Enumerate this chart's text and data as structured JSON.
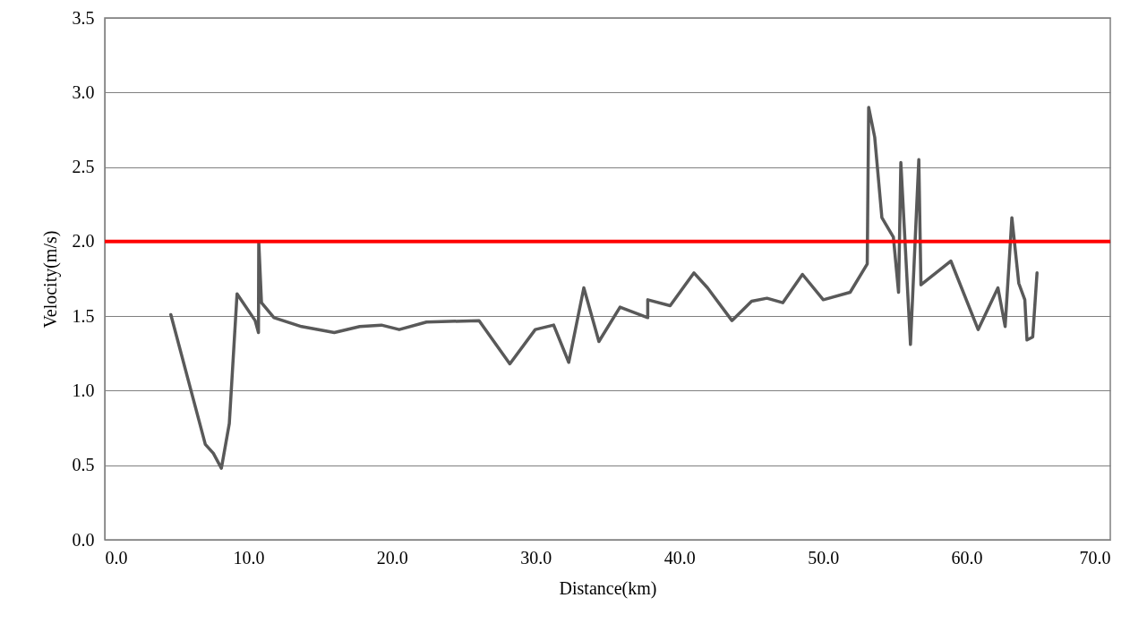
{
  "chart_data": {
    "type": "line",
    "xlabel": "Distance(km)",
    "ylabel": "Velocity(m/s)",
    "xlim": [
      0,
      70
    ],
    "ylim": [
      0,
      3.5
    ],
    "xticks": [
      {
        "value": 0,
        "label": "0.0"
      },
      {
        "value": 10,
        "label": "10.0"
      },
      {
        "value": 20,
        "label": "20.0"
      },
      {
        "value": 30,
        "label": "30.0"
      },
      {
        "value": 40,
        "label": "40.0"
      },
      {
        "value": 50,
        "label": "50.0"
      },
      {
        "value": 60,
        "label": "60.0"
      },
      {
        "value": 70,
        "label": "70.0"
      }
    ],
    "yticks": [
      {
        "value": 0,
        "label": "0.0"
      },
      {
        "value": 0.5,
        "label": "0.5"
      },
      {
        "value": 1,
        "label": "1.0"
      },
      {
        "value": 1.5,
        "label": "1.5"
      },
      {
        "value": 2,
        "label": "2.0"
      },
      {
        "value": 2.5,
        "label": "2.5"
      },
      {
        "value": 3,
        "label": "3.0"
      },
      {
        "value": 3.5,
        "label": "3.5"
      }
    ],
    "grid": "y",
    "marker": "none",
    "line_style": "solid",
    "series": [
      {
        "color": "#595959",
        "x": [
          4.6,
          7.0,
          7.56,
          8.12,
          8.67,
          9.21,
          10.47,
          10.7,
          10.72,
          10.91,
          11.78,
          13.7,
          15.98,
          17.75,
          19.26,
          20.5,
          22.4,
          26.06,
          28.2,
          29.97,
          31.25,
          32.3,
          33.35,
          34.4,
          35.87,
          37.8,
          37.8,
          39.36,
          41.02,
          41.96,
          43.66,
          45.03,
          46.1,
          47.2,
          48.57,
          50.02,
          51.89,
          53.08,
          53.18,
          53.6,
          54.1,
          54.9,
          55.26,
          55.42,
          56.09,
          56.67,
          56.82,
          58.9,
          60.8,
          62.18,
          62.68,
          63.15,
          63.63,
          64.05,
          64.2,
          64.6,
          64.9
        ],
        "values": [
          1.51,
          0.64,
          0.58,
          0.48,
          0.78,
          1.65,
          1.47,
          1.39,
          2.0,
          1.59,
          1.49,
          1.43,
          1.39,
          1.43,
          1.44,
          1.41,
          1.46,
          1.47,
          1.18,
          1.41,
          1.44,
          1.19,
          1.69,
          1.33,
          1.56,
          1.49,
          1.61,
          1.57,
          1.79,
          1.69,
          1.47,
          1.6,
          1.62,
          1.59,
          1.78,
          1.61,
          1.66,
          1.85,
          2.9,
          2.7,
          2.16,
          2.03,
          1.66,
          2.53,
          1.31,
          2.55,
          1.71,
          1.87,
          1.41,
          1.69,
          1.43,
          2.16,
          1.72,
          1.61,
          1.34,
          1.36,
          1.79
        ]
      }
    ],
    "ref_lines": [
      {
        "axis": "y",
        "value": 2.0,
        "color": "#ff0000",
        "line_style": "solid"
      }
    ]
  }
}
